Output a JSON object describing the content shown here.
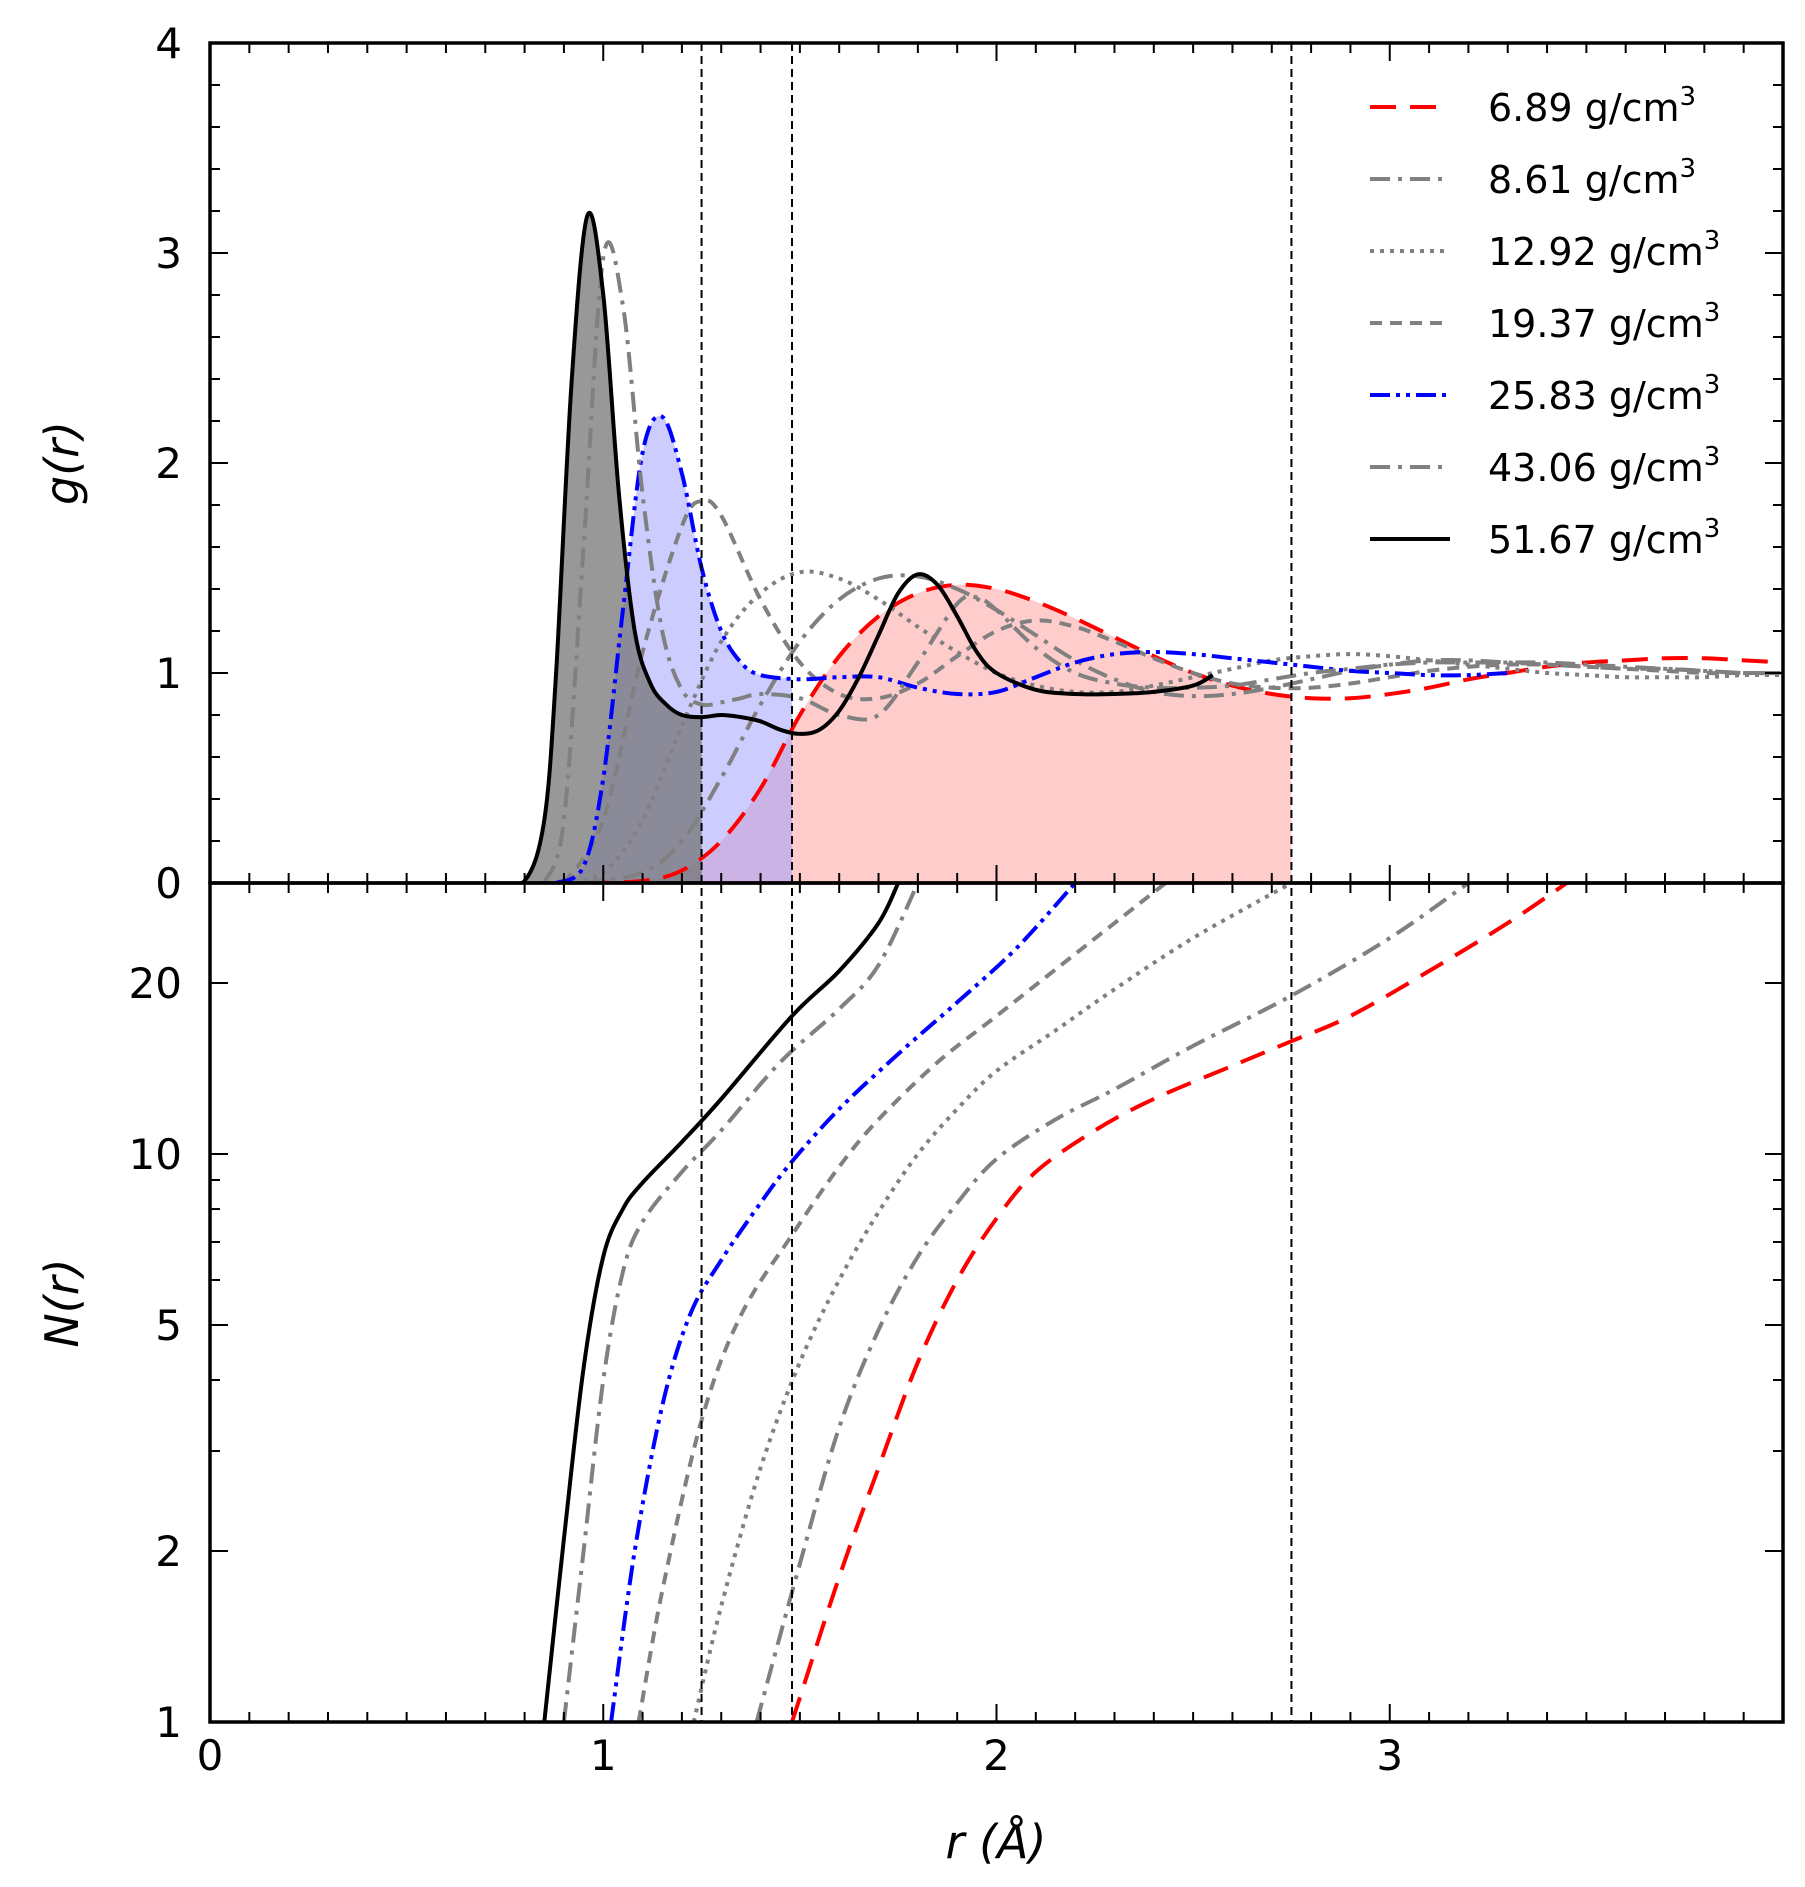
{
  "chart_data": [
    {
      "type": "line",
      "panel": "top",
      "ylabel": "g(r)",
      "xlim": [
        0,
        4.0
      ],
      "ylim": [
        0,
        4
      ],
      "yticks": [
        0,
        1,
        2,
        3,
        4
      ],
      "ytick_labels": [
        "0",
        "1",
        "2",
        "3",
        "4"
      ],
      "vertical_lines": [
        1.25,
        1.48,
        2.75
      ],
      "legend": {
        "placement": "top-right",
        "entries": [
          {
            "value": "6.89",
            "unit": "g/cm",
            "sup": "3",
            "color": "#ff0000",
            "style": "dashed"
          },
          {
            "value": "8.61",
            "unit": "g/cm",
            "sup": "3",
            "color": "#808080",
            "style": "dashdot"
          },
          {
            "value": "12.92",
            "unit": "g/cm",
            "sup": "3",
            "color": "#808080",
            "style": "dotted"
          },
          {
            "value": "19.37",
            "unit": "g/cm",
            "sup": "3",
            "color": "#808080",
            "style": "short-dashed"
          },
          {
            "value": "25.83",
            "unit": "g/cm",
            "sup": "3",
            "color": "#0000ff",
            "style": "dashdotdot"
          },
          {
            "value": "43.06",
            "unit": "g/cm",
            "sup": "3",
            "color": "#808080",
            "style": "dashdot"
          },
          {
            "value": "51.67",
            "unit": "g/cm",
            "sup": "3",
            "color": "#000000",
            "style": "solid"
          }
        ]
      },
      "shaded_regions": [
        {
          "series": "6.89 g/cm3",
          "x_to": 2.75,
          "color": "#ff9999"
        },
        {
          "series": "25.83 g/cm3",
          "x_to": 1.48,
          "color": "#9999ff"
        },
        {
          "series": "51.67 g/cm3",
          "x_to": 1.25,
          "color": "#707070"
        }
      ],
      "series": [
        {
          "name": "6.89 g/cm3",
          "x": [
            0.95,
            1.1,
            1.2,
            1.3,
            1.4,
            1.5,
            1.6,
            1.7,
            1.8,
            1.9,
            2.0,
            2.1,
            2.2,
            2.3,
            2.4,
            2.5,
            2.6,
            2.7,
            2.8,
            2.9,
            3.0,
            3.1,
            3.2,
            3.3,
            3.4,
            3.5,
            3.6,
            3.7,
            3.8,
            3.9,
            4.0
          ],
          "y": [
            0.0,
            0.01,
            0.06,
            0.2,
            0.45,
            0.8,
            1.08,
            1.27,
            1.38,
            1.42,
            1.4,
            1.34,
            1.26,
            1.17,
            1.08,
            1.0,
            0.94,
            0.9,
            0.88,
            0.88,
            0.9,
            0.93,
            0.97,
            1.0,
            1.03,
            1.05,
            1.06,
            1.07,
            1.07,
            1.06,
            1.05
          ]
        },
        {
          "name": "8.61 g/cm3",
          "x": [
            0.95,
            1.1,
            1.2,
            1.3,
            1.4,
            1.5,
            1.6,
            1.7,
            1.8,
            1.9,
            2.0,
            2.1,
            2.2,
            2.3,
            2.4,
            2.5,
            2.6,
            2.7,
            2.8,
            2.9,
            3.0,
            3.1,
            3.2,
            3.3,
            3.4,
            3.5,
            3.6,
            3.7,
            3.8,
            3.9,
            4.0
          ],
          "y": [
            0.0,
            0.05,
            0.2,
            0.5,
            0.85,
            1.15,
            1.35,
            1.45,
            1.46,
            1.4,
            1.3,
            1.18,
            1.06,
            0.97,
            0.91,
            0.89,
            0.9,
            0.93,
            0.97,
            1.01,
            1.04,
            1.06,
            1.06,
            1.05,
            1.04,
            1.03,
            1.02,
            1.02,
            1.01,
            1.0,
            1.0
          ]
        },
        {
          "name": "12.92 g/cm3",
          "x": [
            0.9,
            1.0,
            1.1,
            1.2,
            1.3,
            1.4,
            1.5,
            1.6,
            1.7,
            1.8,
            1.9,
            2.0,
            2.1,
            2.2,
            2.3,
            2.4,
            2.5,
            2.6,
            2.7,
            2.8,
            2.9,
            3.0,
            3.1,
            3.2,
            3.3,
            3.4,
            3.5,
            3.6,
            3.7,
            3.8,
            3.9,
            4.0
          ],
          "y": [
            0.0,
            0.05,
            0.3,
            0.75,
            1.15,
            1.38,
            1.48,
            1.45,
            1.35,
            1.22,
            1.1,
            1.0,
            0.94,
            0.91,
            0.91,
            0.94,
            0.98,
            1.02,
            1.06,
            1.08,
            1.09,
            1.08,
            1.06,
            1.04,
            1.02,
            1.0,
            0.99,
            0.98,
            0.98,
            0.98,
            0.99,
            0.99
          ]
        },
        {
          "name": "19.37 g/cm3",
          "x": [
            0.9,
            1.0,
            1.1,
            1.2,
            1.25,
            1.3,
            1.4,
            1.5,
            1.6,
            1.7,
            1.8,
            1.9,
            2.0,
            2.1,
            2.2,
            2.3,
            2.4,
            2.5,
            2.6,
            2.7,
            2.8,
            2.9,
            3.0,
            3.1,
            3.2,
            3.3,
            3.4,
            3.5,
            3.6,
            3.7,
            3.8,
            3.9,
            4.0
          ],
          "y": [
            0.0,
            0.3,
            1.1,
            1.7,
            1.82,
            1.75,
            1.35,
            1.05,
            0.9,
            0.88,
            0.95,
            1.08,
            1.2,
            1.25,
            1.22,
            1.15,
            1.07,
            1.0,
            0.95,
            0.93,
            0.93,
            0.95,
            0.98,
            1.01,
            1.03,
            1.04,
            1.04,
            1.03,
            1.02,
            1.01,
            1.0,
            1.0,
            1.0
          ]
        },
        {
          "name": "25.83 g/cm3",
          "x": [
            0.88,
            0.95,
            1.0,
            1.05,
            1.1,
            1.15,
            1.2,
            1.25,
            1.3,
            1.35,
            1.4,
            1.5,
            1.6,
            1.7,
            1.8,
            1.9,
            2.0,
            2.1,
            2.2,
            2.3,
            2.4,
            2.5,
            2.6,
            2.7,
            2.8,
            2.9,
            3.0,
            3.1,
            3.2,
            3.3
          ],
          "y": [
            0.0,
            0.08,
            0.5,
            1.3,
            2.05,
            2.22,
            1.95,
            1.5,
            1.2,
            1.05,
            0.99,
            0.97,
            0.98,
            0.98,
            0.93,
            0.9,
            0.91,
            0.98,
            1.05,
            1.09,
            1.1,
            1.09,
            1.07,
            1.05,
            1.03,
            1.01,
            1.0,
            0.99,
            0.99,
            1.0
          ]
        },
        {
          "name": "43.06 g/cm3",
          "x": [
            0.85,
            0.9,
            0.95,
            1.0,
            1.05,
            1.1,
            1.15,
            1.2,
            1.25,
            1.3,
            1.35,
            1.4,
            1.5,
            1.6,
            1.7,
            1.8,
            1.9,
            1.95,
            2.0,
            2.1,
            2.2,
            2.3,
            2.4,
            2.5,
            2.6,
            2.7,
            2.8,
            2.9,
            3.0,
            3.1,
            3.2,
            3.3,
            3.4,
            3.5,
            3.6,
            3.7,
            3.8,
            3.9,
            4.0
          ],
          "y": [
            0.0,
            0.3,
            1.6,
            2.98,
            2.75,
            1.85,
            1.2,
            0.92,
            0.85,
            0.86,
            0.88,
            0.9,
            0.88,
            0.8,
            0.8,
            1.05,
            1.33,
            1.36,
            1.3,
            1.12,
            1.0,
            0.95,
            0.93,
            0.93,
            0.94,
            0.97,
            1.0,
            1.02,
            1.04,
            1.05,
            1.05,
            1.05,
            1.05,
            1.04,
            1.03,
            1.02,
            1.01,
            1.0,
            1.0
          ]
        },
        {
          "name": "51.67 g/cm3",
          "x": [
            0.72,
            0.8,
            0.85,
            0.88,
            0.92,
            0.96,
            1.0,
            1.04,
            1.08,
            1.12,
            1.16,
            1.2,
            1.25,
            1.3,
            1.35,
            1.4,
            1.45,
            1.5,
            1.55,
            1.6,
            1.65,
            1.7,
            1.75,
            1.8,
            1.85,
            1.9,
            1.95,
            2.0,
            2.1,
            2.2,
            2.3,
            2.4,
            2.5,
            2.55
          ],
          "y": [
            0.0,
            0.01,
            0.3,
            1.0,
            2.4,
            3.18,
            2.8,
            1.85,
            1.2,
            0.95,
            0.85,
            0.8,
            0.79,
            0.8,
            0.79,
            0.77,
            0.73,
            0.71,
            0.73,
            0.82,
            0.98,
            1.18,
            1.38,
            1.47,
            1.42,
            1.27,
            1.1,
            1.0,
            0.92,
            0.9,
            0.9,
            0.91,
            0.94,
            0.99
          ]
        }
      ]
    },
    {
      "type": "line",
      "panel": "bottom",
      "xlabel": "r (Å)",
      "ylabel": "N(r)",
      "yscale": "log",
      "xlim": [
        0,
        4.0
      ],
      "ylim": [
        1,
        30
      ],
      "xticks": [
        0,
        1,
        2,
        3
      ],
      "xtick_labels": [
        "0",
        "1",
        "2",
        "3"
      ],
      "yticks": [
        1,
        2,
        5,
        10,
        20
      ],
      "ytick_labels": [
        "1",
        "2",
        "5",
        "10",
        "20"
      ],
      "vertical_lines": [
        1.25,
        1.48,
        2.75
      ],
      "series": [
        {
          "name": "6.89 g/cm3",
          "x": [
            1.48,
            1.6,
            1.7,
            1.8,
            1.9,
            2.0,
            2.1,
            2.25,
            2.4,
            2.6,
            2.75,
            2.9,
            3.1,
            3.3,
            3.45
          ],
          "y": [
            1.0,
            1.8,
            2.8,
            4.3,
            6.0,
            7.7,
            9.3,
            11.0,
            12.5,
            14.3,
            15.8,
            17.5,
            21.0,
            25.5,
            30.0
          ]
        },
        {
          "name": "8.61 g/cm3",
          "x": [
            1.39,
            1.5,
            1.6,
            1.7,
            1.8,
            1.9,
            2.0,
            2.15,
            2.3,
            2.5,
            2.75,
            3.0,
            3.2
          ],
          "y": [
            1.0,
            1.9,
            3.3,
            4.9,
            6.6,
            8.2,
            9.8,
            11.5,
            13.0,
            15.5,
            19.0,
            24.0,
            30.0
          ]
        },
        {
          "name": "12.92 g/cm3",
          "x": [
            1.23,
            1.3,
            1.4,
            1.5,
            1.6,
            1.7,
            1.8,
            1.9,
            2.0,
            2.15,
            2.3,
            2.5,
            2.75
          ],
          "y": [
            1.0,
            1.6,
            2.8,
            4.3,
            6.0,
            7.9,
            10.0,
            12.0,
            14.0,
            16.5,
            19.5,
            24.0,
            30.0
          ]
        },
        {
          "name": "19.37 g/cm3",
          "x": [
            1.09,
            1.15,
            1.25,
            1.35,
            1.48,
            1.6,
            1.7,
            1.85,
            2.0,
            2.2,
            2.43
          ],
          "y": [
            1.0,
            1.7,
            3.4,
            5.2,
            7.2,
            9.5,
            11.5,
            14.5,
            17.5,
            22.5,
            30.0
          ]
        },
        {
          "name": "25.83 g/cm3",
          "x": [
            1.02,
            1.08,
            1.15,
            1.22,
            1.3,
            1.4,
            1.48,
            1.6,
            1.75,
            1.9,
            2.05,
            2.2
          ],
          "y": [
            1.0,
            2.0,
            3.6,
            5.2,
            6.5,
            8.2,
            9.7,
            12.0,
            15.0,
            18.5,
            23.0,
            30.0
          ]
        },
        {
          "name": "43.06 g/cm3",
          "x": [
            0.9,
            0.95,
            1.0,
            1.05,
            1.1,
            1.2,
            1.3,
            1.45,
            1.6,
            1.7,
            1.8
          ],
          "y": [
            1.0,
            2.0,
            4.0,
            6.2,
            7.6,
            9.3,
            11.0,
            14.5,
            18.0,
            21.5,
            30.0
          ]
        },
        {
          "name": "51.67 g/cm3",
          "x": [
            0.85,
            0.9,
            0.95,
            1.0,
            1.05,
            1.1,
            1.2,
            1.3,
            1.48,
            1.6,
            1.7,
            1.75
          ],
          "y": [
            1.0,
            2.1,
            4.2,
            6.6,
            8.0,
            8.9,
            10.5,
            12.5,
            17.5,
            21.0,
            25.5,
            30.0
          ]
        }
      ]
    }
  ]
}
